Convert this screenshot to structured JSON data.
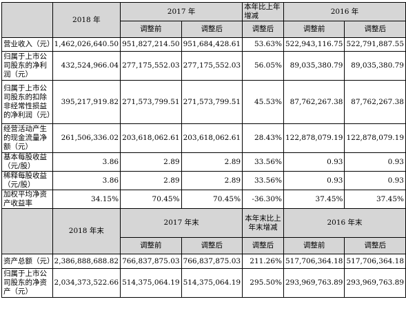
{
  "header1": {
    "year_2018": "2018 年",
    "year_2017": "2017 年",
    "yoy_change": "本年比上年增减",
    "year_2016": "2016 年",
    "before_adj": "调整前",
    "after_adj": "调整后",
    "after_adj_yoy": "调整后"
  },
  "rows_income": [
    {
      "label": "营业收入（元）",
      "values": [
        "1,462,026,640.50",
        "951,827,214.50",
        "951,684,428.61",
        "53.63%",
        "522,943,116.75",
        "522,791,887.55"
      ]
    },
    {
      "label": "归属于上市公司股东的净利润（元）",
      "values": [
        "432,524,966.04",
        "277,175,552.03",
        "277,175,552.03",
        "56.05%",
        "89,035,380.79",
        "89,035,380.79"
      ]
    },
    {
      "label": "归属于上市公司股东的扣除非经常性损益的净利润（元）",
      "values": [
        "395,217,919.82",
        "271,573,799.51",
        "271,573,799.51",
        "45.53%",
        "87,762,267.38",
        "87,762,267.38"
      ]
    },
    {
      "label": "经营活动产生的现金流量净额（元）",
      "values": [
        "261,506,336.02",
        "203,618,062.61",
        "203,618,062.61",
        "28.43%",
        "122,878,079.19",
        "122,878,079.19"
      ]
    },
    {
      "label": "基本每股收益（元/股）",
      "values": [
        "3.86",
        "2.89",
        "2.89",
        "33.56%",
        "0.93",
        "0.93"
      ]
    },
    {
      "label": "稀释每股收益（元/股）",
      "values": [
        "3.86",
        "2.89",
        "2.89",
        "33.56%",
        "0.93",
        "0.93"
      ]
    },
    {
      "label": "加权平均净资产收益率",
      "values": [
        "34.15%",
        "70.45%",
        "70.45%",
        "-36.30%",
        "37.45%",
        "37.45%"
      ]
    }
  ],
  "header2": {
    "end_2018": "2018 年末",
    "end_2017": "2017 年末",
    "yoy_change_end": "本年末比上年末增减",
    "end_2016": "2016 年末",
    "before_adj": "调整前",
    "after_adj": "调整后",
    "after_adj_yoy": "调整后"
  },
  "rows_balance": [
    {
      "label": "资产总额（元）",
      "values": [
        "2,386,888,688.82",
        "766,837,875.03",
        "766,837,875.03",
        "211.26%",
        "517,706,364.18",
        "517,706,364.18"
      ]
    },
    {
      "label": "归属于上市公司股东的净资产（元）",
      "values": [
        "2,034,373,522.66",
        "514,375,064.19",
        "514,375,064.19",
        "295.50%",
        "293,969,763.89",
        "293,969,763.89"
      ]
    }
  ]
}
